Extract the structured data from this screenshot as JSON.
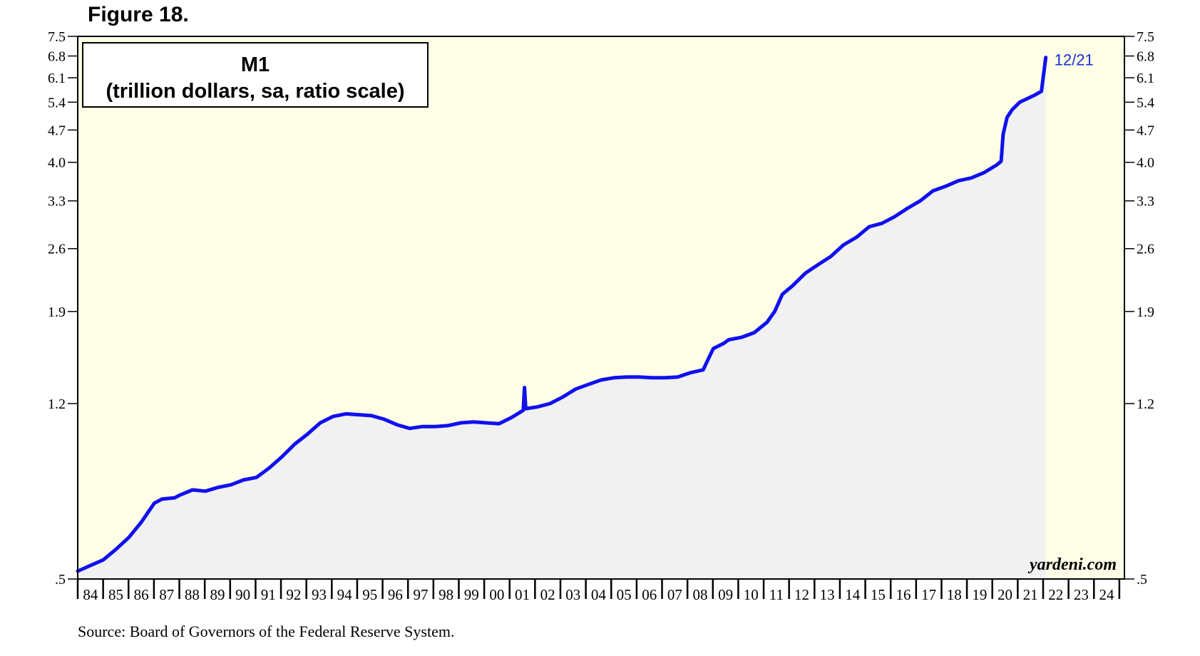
{
  "figure_label": "Figure 18.",
  "source": "Source: Board of Governors of the Federal Reserve System.",
  "watermark": "yardeni.com",
  "colors": {
    "plot_background": "#fefee6",
    "area_fill": "#f1f1f1",
    "line": "#1010ee",
    "end_label": "#1a2fd6"
  },
  "chart_data": {
    "type": "line",
    "title": "M1",
    "subtitle": "(trillion dollars, sa, ratio scale)",
    "scale": "log",
    "ylim": [
      0.5,
      7.5
    ],
    "xlim": [
      1984,
      2025
    ],
    "y_ticks": [
      {
        "value": 7.5,
        "label": "7.5"
      },
      {
        "value": 6.8,
        "label": "6.8"
      },
      {
        "value": 6.1,
        "label": "6.1"
      },
      {
        "value": 5.4,
        "label": "5.4"
      },
      {
        "value": 4.7,
        "label": "4.7"
      },
      {
        "value": 4.0,
        "label": "4.0"
      },
      {
        "value": 3.3,
        "label": "3.3"
      },
      {
        "value": 2.6,
        "label": "2.6"
      },
      {
        "value": 1.9,
        "label": "1.9"
      },
      {
        "value": 1.2,
        "label": "1.2"
      },
      {
        "value": 0.5,
        "label": ".5"
      }
    ],
    "x_tick_labels": [
      "84",
      "85",
      "86",
      "87",
      "88",
      "89",
      "90",
      "91",
      "92",
      "93",
      "94",
      "95",
      "96",
      "97",
      "98",
      "99",
      "00",
      "01",
      "02",
      "03",
      "04",
      "05",
      "06",
      "07",
      "08",
      "09",
      "10",
      "11",
      "12",
      "13",
      "14",
      "15",
      "16",
      "17",
      "18",
      "19",
      "20",
      "21",
      "22",
      "23",
      "24"
    ],
    "end_label": "12/21",
    "series": [
      {
        "x": [
          1984.0,
          1984.5,
          1985.0,
          1985.5,
          1986.0,
          1986.5,
          1987.0,
          1987.3,
          1987.8,
          1988.0,
          1988.5,
          1989.0,
          1989.5,
          1990.0,
          1990.5,
          1991.0,
          1991.5,
          1992.0,
          1992.5,
          1993.0,
          1993.5,
          1994.0,
          1994.5,
          1995.0,
          1995.5,
          1996.0,
          1996.5,
          1997.0,
          1997.5,
          1998.0,
          1998.5,
          1999.0,
          1999.5,
          2000.0,
          2000.5,
          2001.0,
          2001.45,
          2001.5,
          2001.55,
          2002.0,
          2002.5,
          2003.0,
          2003.5,
          2004.0,
          2004.5,
          2005.0,
          2005.5,
          2006.0,
          2006.5,
          2007.0,
          2007.5,
          2008.0,
          2008.5,
          2008.7,
          2008.9,
          2009.3,
          2009.5,
          2010.0,
          2010.5,
          2011.0,
          2011.3,
          2011.6,
          2012.0,
          2012.5,
          2013.0,
          2013.5,
          2014.0,
          2014.5,
          2015.0,
          2015.5,
          2016.0,
          2016.5,
          2017.0,
          2017.5,
          2018.0,
          2018.5,
          2019.0,
          2019.5,
          2020.0,
          2020.17,
          2020.25,
          2020.4,
          2020.6,
          2020.9,
          2021.2,
          2021.5,
          2021.75,
          2021.92
        ],
        "y": [
          0.52,
          0.535,
          0.55,
          0.58,
          0.615,
          0.665,
          0.73,
          0.745,
          0.75,
          0.76,
          0.78,
          0.775,
          0.79,
          0.8,
          0.82,
          0.83,
          0.87,
          0.92,
          0.98,
          1.03,
          1.09,
          1.125,
          1.14,
          1.135,
          1.13,
          1.11,
          1.08,
          1.06,
          1.07,
          1.07,
          1.075,
          1.09,
          1.095,
          1.09,
          1.085,
          1.12,
          1.16,
          1.3,
          1.17,
          1.18,
          1.2,
          1.24,
          1.29,
          1.32,
          1.35,
          1.365,
          1.37,
          1.37,
          1.365,
          1.365,
          1.37,
          1.4,
          1.42,
          1.5,
          1.58,
          1.62,
          1.65,
          1.67,
          1.71,
          1.8,
          1.9,
          2.07,
          2.16,
          2.3,
          2.4,
          2.5,
          2.65,
          2.75,
          2.9,
          2.95,
          3.05,
          3.18,
          3.3,
          3.47,
          3.55,
          3.65,
          3.7,
          3.8,
          3.95,
          4.02,
          4.6,
          5.0,
          5.2,
          5.4,
          5.5,
          5.6,
          5.7,
          6.75
        ]
      }
    ]
  }
}
